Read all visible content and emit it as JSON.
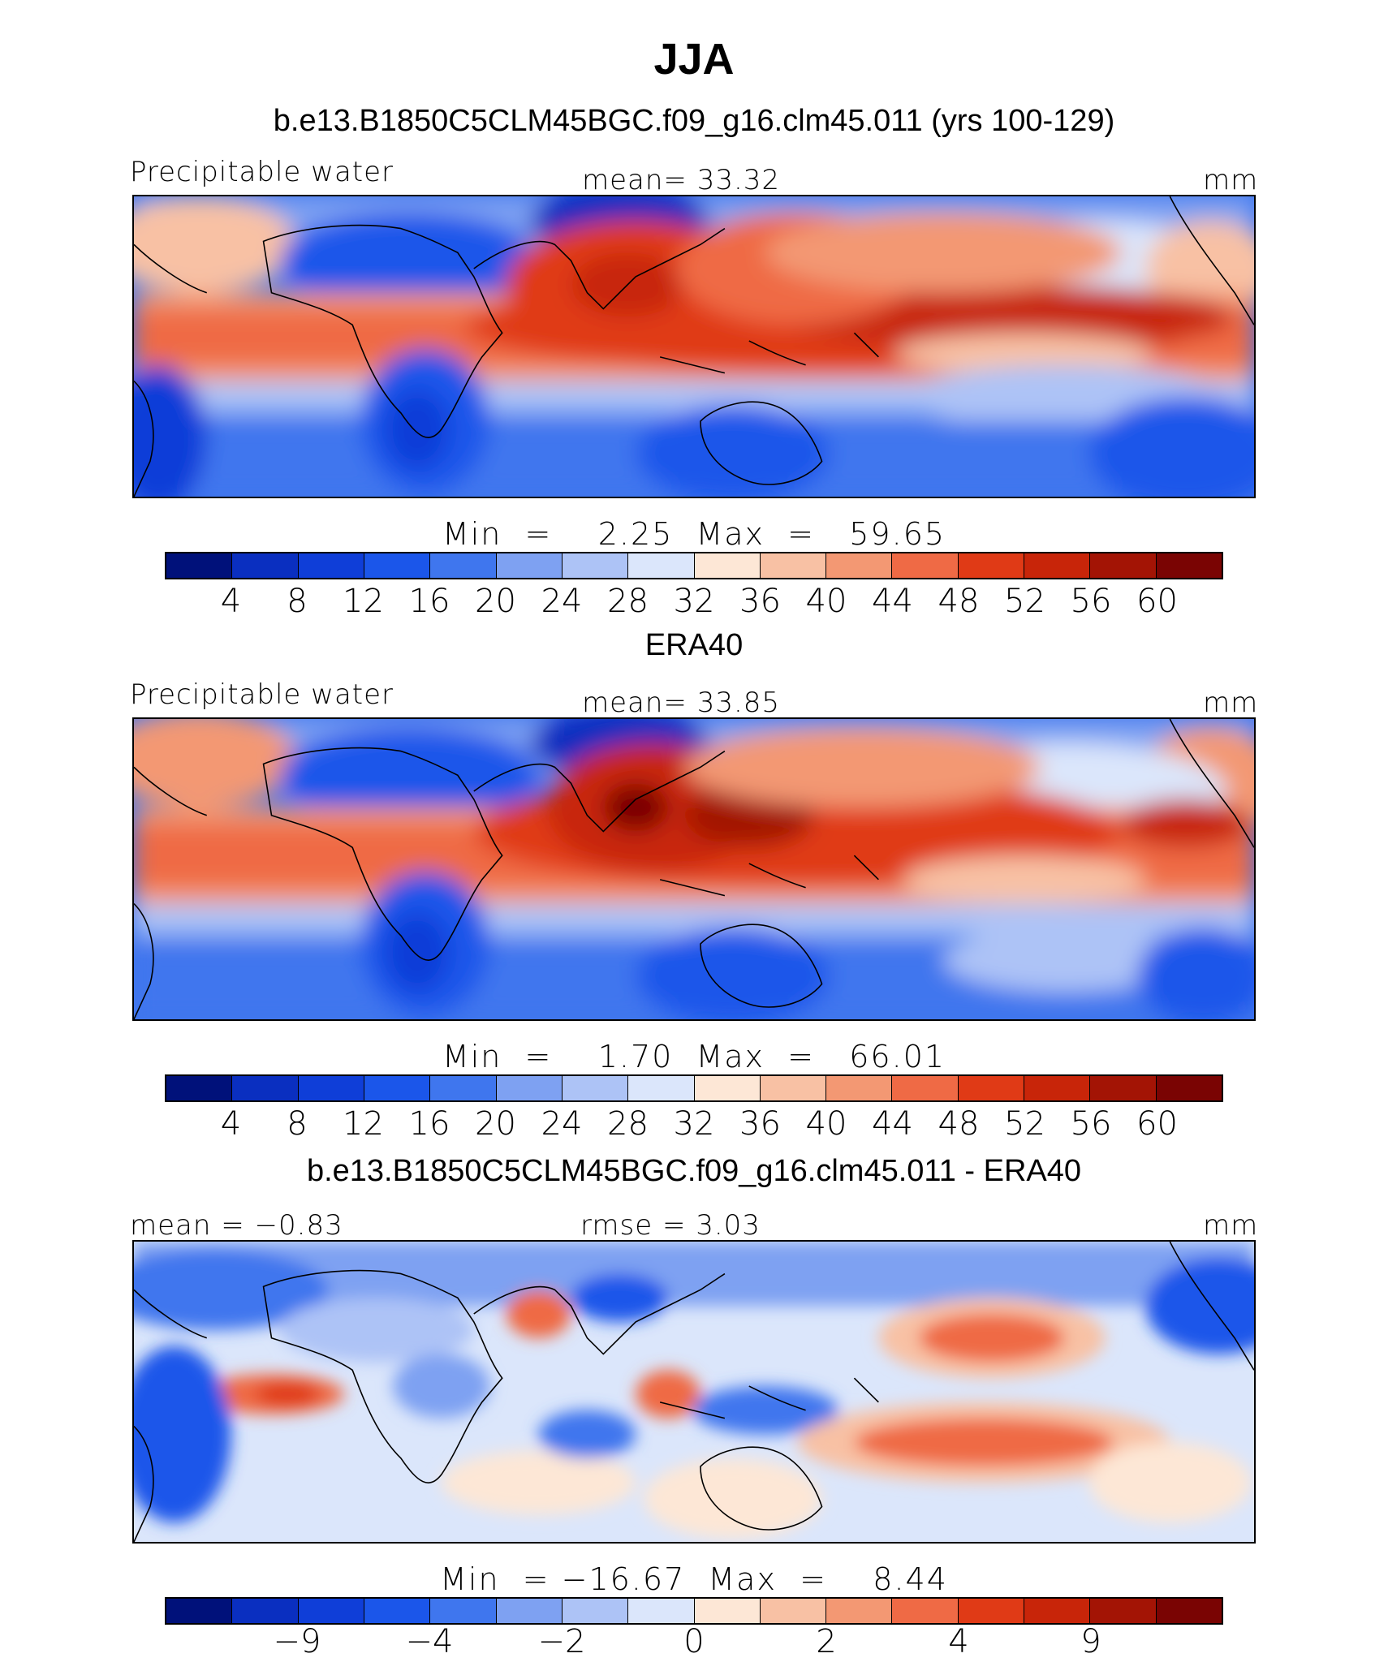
{
  "figure": {
    "title": "JJA",
    "colors": [
      "#00117a",
      "#0a2fc0",
      "#0f3ed8",
      "#1b56ea",
      "#3f76ee",
      "#7ea1f2",
      "#adc3f6",
      "#dbe6fb",
      "#fde7d6",
      "#f8c1a4",
      "#f39873",
      "#ef6a45",
      "#e03a16",
      "#c82509",
      "#a31405",
      "#7a0403"
    ]
  },
  "panels": [
    {
      "subtitle": "b.e13.B1850C5CLM45BGC.f09_g16.clm45.011 (yrs 100-129)",
      "left_label": "Precipitable water",
      "center_label": "mean=   33.32",
      "units": "mm",
      "min_max": "Min  =    2.25  Max  =   59.65",
      "colorbar_ticks": [
        "4",
        "8",
        "12",
        "16",
        "20",
        "24",
        "28",
        "32",
        "36",
        "40",
        "44",
        "48",
        "52",
        "56",
        "60"
      ]
    },
    {
      "subtitle": "ERA40",
      "left_label": "Precipitable water",
      "center_label": "mean=   33.85",
      "units": "mm",
      "min_max": "Min  =    1.70  Max  =   66.01",
      "colorbar_ticks": [
        "4",
        "8",
        "12",
        "16",
        "20",
        "24",
        "28",
        "32",
        "36",
        "40",
        "44",
        "48",
        "52",
        "56",
        "60"
      ]
    },
    {
      "subtitle": "b.e13.B1850C5CLM45BGC.f09_g16.clm45.011 - ERA40",
      "left_label": "mean =   −0.83",
      "center_label": "rmse =    3.03",
      "units": "mm",
      "min_max": "Min  = −16.67  Max  =    8.44",
      "colorbar_ticks": [
        "−9",
        "−4",
        "−2",
        "0",
        "2",
        "4",
        "9"
      ],
      "colorbar_tick_positions": [
        2,
        4,
        6,
        8,
        10,
        12,
        14
      ]
    }
  ]
}
